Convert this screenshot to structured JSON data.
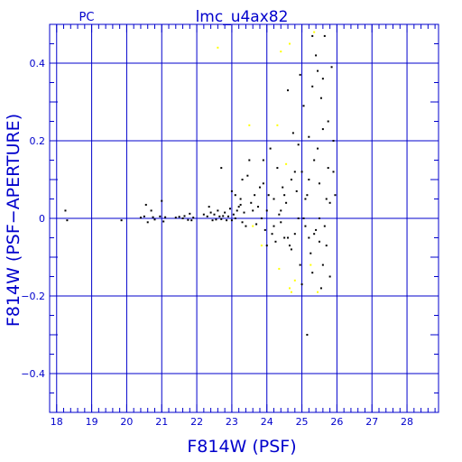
{
  "chart_data": {
    "type": "scatter",
    "title": "lmc_u4ax82",
    "corner_label": "PC",
    "xlabel": "F814W (PSF)",
    "ylabel": "F814W (PSF−APERTURE)",
    "xlim": [
      17.8,
      28.9
    ],
    "ylim": [
      -0.5,
      0.5
    ],
    "x_major_ticks": [
      18,
      19,
      20,
      21,
      22,
      23,
      24,
      25,
      26,
      27,
      28
    ],
    "y_major_ticks": [
      -0.4,
      -0.2,
      0,
      0.2,
      0.4
    ],
    "y_tick_labels": [
      "−0.4",
      "−0.2",
      "0",
      "0.2",
      "0.4"
    ],
    "grid": true,
    "colors": {
      "frame": "#0000cc",
      "series_main": "#000000",
      "series_rejected": "#ffff00"
    },
    "series": [
      {
        "color": "#000000",
        "points": [
          [
            18.25,
            0.02
          ],
          [
            18.3,
            -0.005
          ],
          [
            19.85,
            -0.005
          ],
          [
            20.4,
            0.002
          ],
          [
            20.5,
            0.005
          ],
          [
            20.55,
            0.035
          ],
          [
            20.6,
            -0.01
          ],
          [
            20.7,
            0.02
          ],
          [
            20.75,
            0.003
          ],
          [
            20.8,
            -0.003
          ],
          [
            20.95,
            0.005
          ],
          [
            21.0,
            0.045
          ],
          [
            21.05,
            -0.008
          ],
          [
            21.1,
            0.003
          ],
          [
            21.4,
            0.002
          ],
          [
            21.5,
            0.004
          ],
          [
            21.6,
            0.0
          ],
          [
            21.65,
            0.006
          ],
          [
            21.75,
            -0.004
          ],
          [
            21.8,
            0.012
          ],
          [
            21.85,
            -0.005
          ],
          [
            21.9,
            0.002
          ],
          [
            22.2,
            0.01
          ],
          [
            22.3,
            0.005
          ],
          [
            22.35,
            0.03
          ],
          [
            22.4,
            0.015
          ],
          [
            22.45,
            -0.005
          ],
          [
            22.5,
            0.01
          ],
          [
            22.55,
            -0.003
          ],
          [
            22.6,
            0.02
          ],
          [
            22.65,
            0.005
          ],
          [
            22.7,
            -0.002
          ],
          [
            22.75,
            0.006
          ],
          [
            22.8,
            0.015
          ],
          [
            22.85,
            -0.005
          ],
          [
            22.9,
            0.005
          ],
          [
            22.95,
            0.025
          ],
          [
            23.0,
            -0.005
          ],
          [
            23.05,
            0.01
          ],
          [
            23.1,
            0.0
          ],
          [
            23.15,
            0.02
          ],
          [
            23.2,
            0.03
          ],
          [
            23.25,
            0.05
          ],
          [
            23.3,
            -0.01
          ],
          [
            22.7,
            0.13
          ],
          [
            23.0,
            0.07
          ],
          [
            23.1,
            0.06
          ],
          [
            23.25,
            0.035
          ],
          [
            23.3,
            0.1
          ],
          [
            23.35,
            0.015
          ],
          [
            23.4,
            -0.02
          ],
          [
            23.45,
            0.11
          ],
          [
            23.5,
            0.15
          ],
          [
            23.55,
            0.04
          ],
          [
            23.6,
            0.02
          ],
          [
            23.65,
            0.06
          ],
          [
            23.7,
            -0.015
          ],
          [
            23.75,
            0.03
          ],
          [
            23.8,
            0.08
          ],
          [
            23.85,
            0.0
          ],
          [
            23.9,
            0.09
          ],
          [
            23.95,
            -0.03
          ],
          [
            24.0,
            0.02
          ],
          [
            24.05,
            0.06
          ],
          [
            24.1,
            0.18
          ],
          [
            24.15,
            -0.04
          ],
          [
            24.2,
            0.05
          ],
          [
            24.25,
            -0.06
          ],
          [
            24.3,
            0.13
          ],
          [
            24.35,
            0.01
          ],
          [
            24.4,
            -0.01
          ],
          [
            24.45,
            0.08
          ],
          [
            24.5,
            -0.05
          ],
          [
            24.55,
            0.04
          ],
          [
            24.6,
            0.33
          ],
          [
            24.65,
            -0.07
          ],
          [
            24.7,
            0.1
          ],
          [
            24.75,
            0.22
          ],
          [
            24.8,
            -0.04
          ],
          [
            24.85,
            0.07
          ],
          [
            24.9,
            0.0
          ],
          [
            24.95,
            -0.12
          ],
          [
            25.0,
            0.12
          ],
          [
            25.05,
            0.29
          ],
          [
            25.1,
            -0.02
          ],
          [
            25.15,
            0.06
          ],
          [
            25.2,
            0.21
          ],
          [
            25.25,
            -0.09
          ],
          [
            25.3,
            0.47
          ],
          [
            25.35,
            0.15
          ],
          [
            25.4,
            -0.03
          ],
          [
            25.45,
            0.38
          ],
          [
            25.5,
            0.0
          ],
          [
            25.55,
            0.31
          ],
          [
            25.6,
            -0.12
          ],
          [
            25.65,
            0.47
          ],
          [
            25.7,
            0.05
          ],
          [
            25.75,
            0.25
          ],
          [
            25.8,
            -0.15
          ],
          [
            25.85,
            0.39
          ],
          [
            24.7,
            -0.08
          ],
          [
            24.9,
            0.19
          ],
          [
            25.0,
            -0.17
          ],
          [
            25.15,
            -0.3
          ],
          [
            25.2,
            0.1
          ],
          [
            25.3,
            -0.14
          ],
          [
            25.4,
            0.42
          ],
          [
            25.5,
            0.09
          ],
          [
            25.55,
            -0.18
          ],
          [
            25.6,
            0.23
          ],
          [
            25.7,
            -0.07
          ],
          [
            25.75,
            0.13
          ],
          [
            25.9,
            0.2
          ],
          [
            25.95,
            0.06
          ],
          [
            24.95,
            0.37
          ],
          [
            25.3,
            0.34
          ],
          [
            25.45,
            0.18
          ],
          [
            25.6,
            0.36
          ],
          [
            25.35,
            -0.04
          ],
          [
            24.6,
            -0.05
          ],
          [
            24.8,
            0.12
          ],
          [
            24.4,
            0.02
          ],
          [
            24.2,
            -0.02
          ],
          [
            24.0,
            -0.07
          ],
          [
            23.9,
            0.15
          ],
          [
            24.5,
            0.06
          ],
          [
            25.1,
            0.05
          ],
          [
            25.2,
            -0.05
          ],
          [
            25.05,
            0.0
          ],
          [
            25.5,
            -0.06
          ],
          [
            25.65,
            -0.02
          ],
          [
            25.8,
            0.04
          ],
          [
            25.9,
            0.12
          ]
        ]
      },
      {
        "color": "#ffff00",
        "points": [
          [
            22.6,
            0.44
          ],
          [
            23.5,
            0.24
          ],
          [
            24.3,
            0.24
          ],
          [
            24.4,
            0.43
          ],
          [
            24.55,
            0.14
          ],
          [
            24.65,
            0.45
          ],
          [
            25.35,
            0.48
          ],
          [
            24.35,
            -0.13
          ],
          [
            24.65,
            -0.18
          ],
          [
            24.8,
            -0.16
          ],
          [
            24.7,
            -0.19
          ],
          [
            25.25,
            -0.12
          ],
          [
            23.85,
            -0.07
          ],
          [
            23.6,
            -0.02
          ],
          [
            25.45,
            -0.19
          ]
        ]
      }
    ]
  }
}
